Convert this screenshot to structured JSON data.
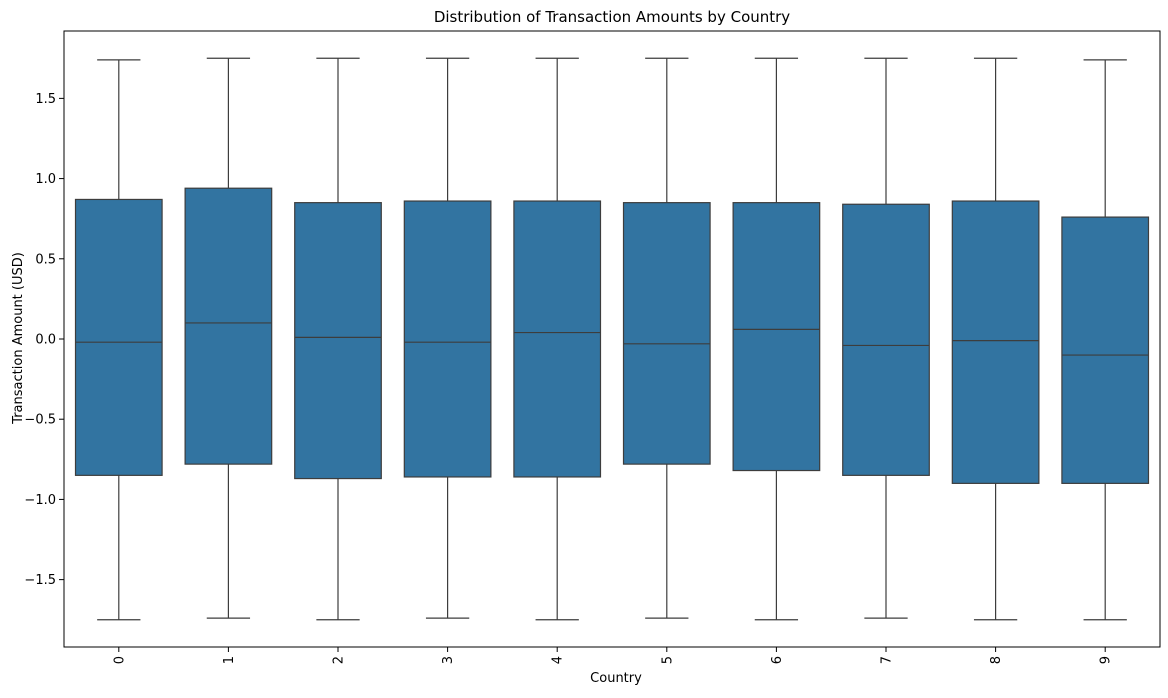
{
  "chart_data": {
    "type": "box",
    "title": "Distribution of Transaction Amounts by Country",
    "xlabel": "Country",
    "ylabel": "Transaction Amount (USD)",
    "categories": [
      "0",
      "1",
      "2",
      "3",
      "4",
      "5",
      "6",
      "7",
      "8",
      "9"
    ],
    "ylim": [
      -1.92,
      1.92
    ],
    "yticks": [
      -1.5,
      -1.0,
      -0.5,
      0.0,
      0.5,
      1.0,
      1.5
    ],
    "ytick_labels": [
      "−1.5",
      "−1.0",
      "−0.5",
      "0.0",
      "0.5",
      "1.0",
      "1.5"
    ],
    "x_tick_rotation": "vertical",
    "grid": false,
    "legend": "none",
    "box_color": "#3274a1",
    "line_color": "#3d3d3d",
    "boxes": [
      {
        "category": "0",
        "whisker_low": -1.75,
        "q1": -0.85,
        "median": -0.02,
        "q3": 0.87,
        "whisker_high": 1.74
      },
      {
        "category": "1",
        "whisker_low": -1.74,
        "q1": -0.78,
        "median": 0.1,
        "q3": 0.94,
        "whisker_high": 1.75
      },
      {
        "category": "2",
        "whisker_low": -1.75,
        "q1": -0.87,
        "median": 0.01,
        "q3": 0.85,
        "whisker_high": 1.75
      },
      {
        "category": "3",
        "whisker_low": -1.74,
        "q1": -0.86,
        "median": -0.02,
        "q3": 0.86,
        "whisker_high": 1.75
      },
      {
        "category": "4",
        "whisker_low": -1.75,
        "q1": -0.86,
        "median": 0.04,
        "q3": 0.86,
        "whisker_high": 1.75
      },
      {
        "category": "5",
        "whisker_low": -1.74,
        "q1": -0.78,
        "median": -0.03,
        "q3": 0.85,
        "whisker_high": 1.75
      },
      {
        "category": "6",
        "whisker_low": -1.75,
        "q1": -0.82,
        "median": 0.06,
        "q3": 0.85,
        "whisker_high": 1.75
      },
      {
        "category": "7",
        "whisker_low": -1.74,
        "q1": -0.85,
        "median": -0.04,
        "q3": 0.84,
        "whisker_high": 1.75
      },
      {
        "category": "8",
        "whisker_low": -1.75,
        "q1": -0.9,
        "median": -0.01,
        "q3": 0.86,
        "whisker_high": 1.75
      },
      {
        "category": "9",
        "whisker_low": -1.75,
        "q1": -0.9,
        "median": -0.1,
        "q3": 0.76,
        "whisker_high": 1.74
      }
    ]
  }
}
